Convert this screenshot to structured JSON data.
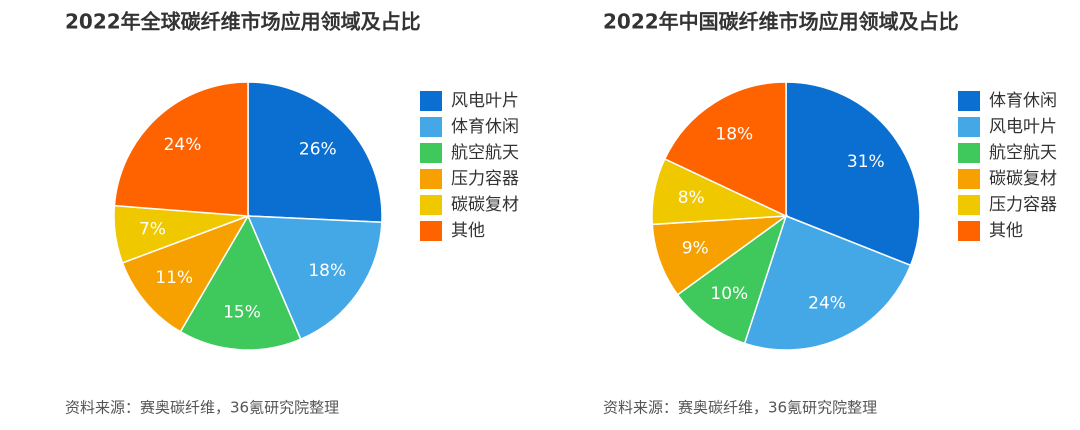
{
  "chart_data": [
    {
      "type": "pie",
      "title": "2022年全球碳纤维市场应用领域及占比",
      "categories": [
        "风电叶片",
        "体育休闲",
        "航空航天",
        "压力容器",
        "碳碳复材",
        "其他"
      ],
      "values": [
        26,
        18,
        15,
        11,
        7,
        24
      ],
      "value_labels": [
        "26%",
        "18%",
        "15%",
        "11%",
        "7%",
        "24%"
      ],
      "colors": [
        "#0a6fd0",
        "#44a8e6",
        "#3fc85c",
        "#f7a100",
        "#efc800",
        "#ff6300"
      ],
      "source": "资料来源：赛奥碳纤维，36氪研究院整理"
    },
    {
      "type": "pie",
      "title": "2022年中国碳纤维市场应用领域及占比",
      "categories": [
        "体育休闲",
        "风电叶片",
        "航空航天",
        "碳碳复材",
        "压力容器",
        "其他"
      ],
      "values": [
        31,
        24,
        10,
        9,
        8,
        18
      ],
      "value_labels": [
        "31%",
        "24%",
        "10%",
        "9%",
        "8%",
        "18%"
      ],
      "colors": [
        "#0a6fd0",
        "#44a8e6",
        "#3fc85c",
        "#f7a100",
        "#efc800",
        "#ff6300"
      ],
      "source": "资料来源：赛奥碳纤维，36氪研究院整理"
    }
  ]
}
